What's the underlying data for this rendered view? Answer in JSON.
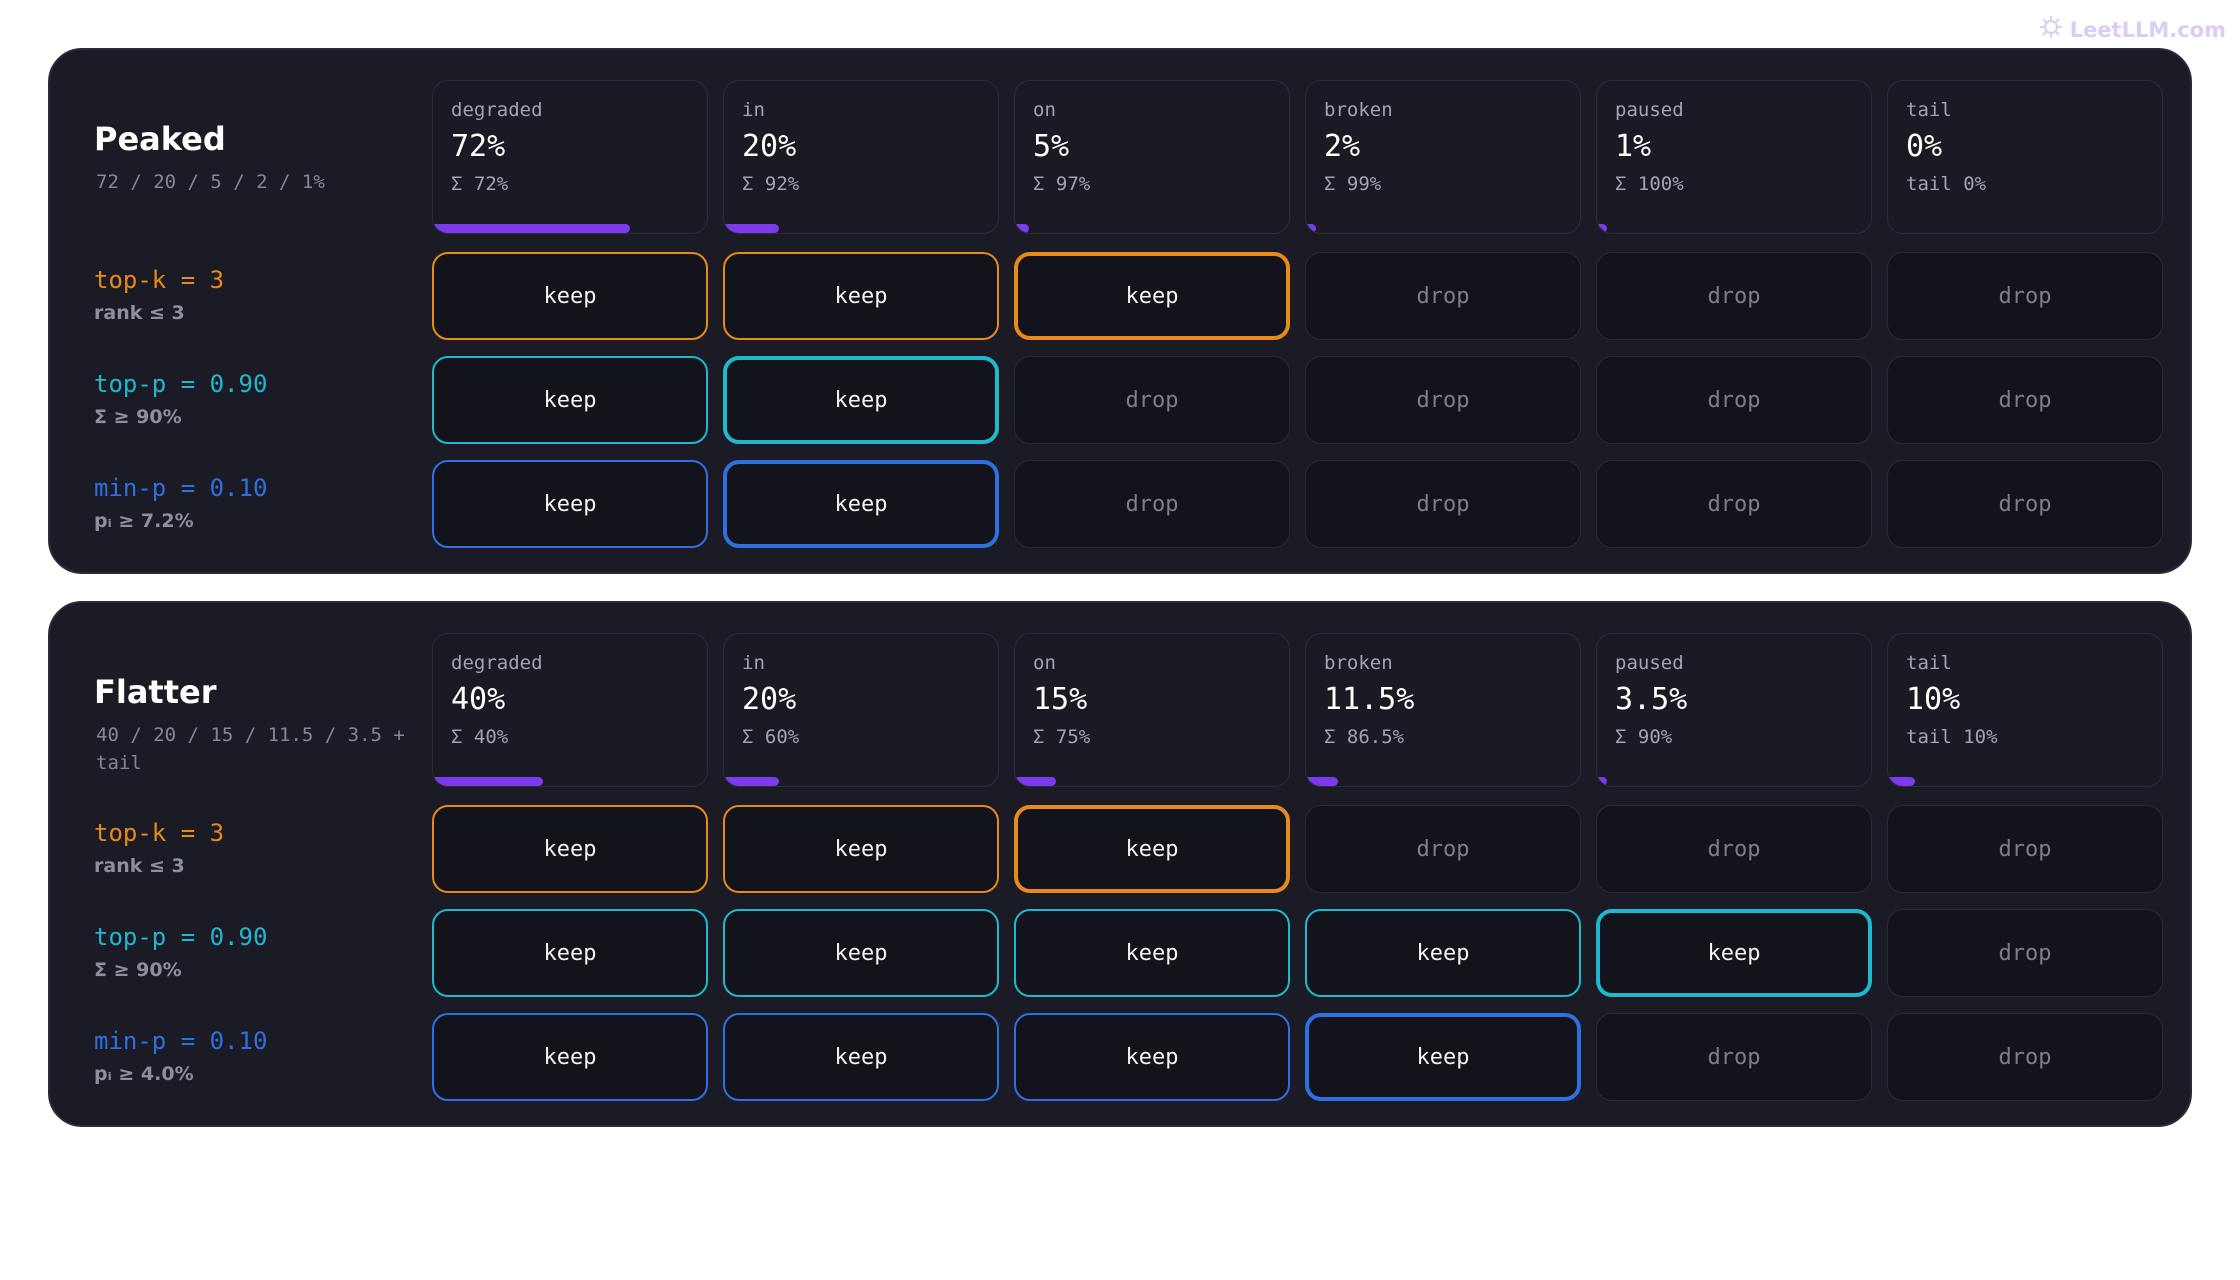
{
  "watermark": "LeetLLM.com",
  "panels": [
    {
      "title": "Peaked",
      "summary": "72 / 20 / 5 / 2 / 1%",
      "tokens": [
        {
          "word": "degraded",
          "prob": "72%",
          "cum": "Σ 72%",
          "fraction": 0.72
        },
        {
          "word": "in",
          "prob": "20%",
          "cum": "Σ 92%",
          "fraction": 0.2
        },
        {
          "word": "on",
          "prob": "5%",
          "cum": "Σ 97%",
          "fraction": 0.05
        },
        {
          "word": "broken",
          "prob": "2%",
          "cum": "Σ 99%",
          "fraction": 0.02
        },
        {
          "word": "paused",
          "prob": "1%",
          "cum": "Σ 100%",
          "fraction": 0.01
        },
        {
          "word": "tail",
          "prob": "0%",
          "cum": "tail 0%",
          "fraction": 0.0
        }
      ],
      "rules": [
        {
          "name": "top-k = 3",
          "sub": "rank ≤ 3",
          "decisions": [
            "keep",
            "keep",
            "keep",
            "drop",
            "drop",
            "drop"
          ]
        },
        {
          "name": "top-p = 0.90",
          "sub": "Σ ≥ 90%",
          "decisions": [
            "keep",
            "keep",
            "drop",
            "drop",
            "drop",
            "drop"
          ]
        },
        {
          "name": "min-p = 0.10",
          "sub": "pᵢ ≥ 7.2%",
          "decisions": [
            "keep",
            "keep",
            "drop",
            "drop",
            "drop",
            "drop"
          ]
        }
      ]
    },
    {
      "title": "Flatter",
      "summary": "40 / 20 / 15 / 11.5 / 3.5 + tail",
      "tokens": [
        {
          "word": "degraded",
          "prob": "40%",
          "cum": "Σ 40%",
          "fraction": 0.4
        },
        {
          "word": "in",
          "prob": "20%",
          "cum": "Σ 60%",
          "fraction": 0.2
        },
        {
          "word": "on",
          "prob": "15%",
          "cum": "Σ 75%",
          "fraction": 0.15
        },
        {
          "word": "broken",
          "prob": "11.5%",
          "cum": "Σ 86.5%",
          "fraction": 0.115
        },
        {
          "word": "paused",
          "prob": "3.5%",
          "cum": "Σ 90%",
          "fraction": 0.035
        },
        {
          "word": "tail",
          "prob": "10%",
          "cum": "tail 10%",
          "fraction": 0.1
        }
      ],
      "rules": [
        {
          "name": "top-k = 3",
          "sub": "rank ≤ 3",
          "decisions": [
            "keep",
            "keep",
            "keep",
            "drop",
            "drop",
            "drop"
          ]
        },
        {
          "name": "top-p = 0.90",
          "sub": "Σ ≥ 90%",
          "decisions": [
            "keep",
            "keep",
            "keep",
            "keep",
            "keep",
            "drop"
          ]
        },
        {
          "name": "min-p = 0.10",
          "sub": "pᵢ ≥ 4.0%",
          "decisions": [
            "keep",
            "keep",
            "keep",
            "keep",
            "drop",
            "drop"
          ]
        }
      ]
    }
  ],
  "colors": {
    "bar": "#7c3aed",
    "top_k": "#e8891b",
    "top_p": "#1fb8cd",
    "min_p": "#2f6fe0"
  }
}
